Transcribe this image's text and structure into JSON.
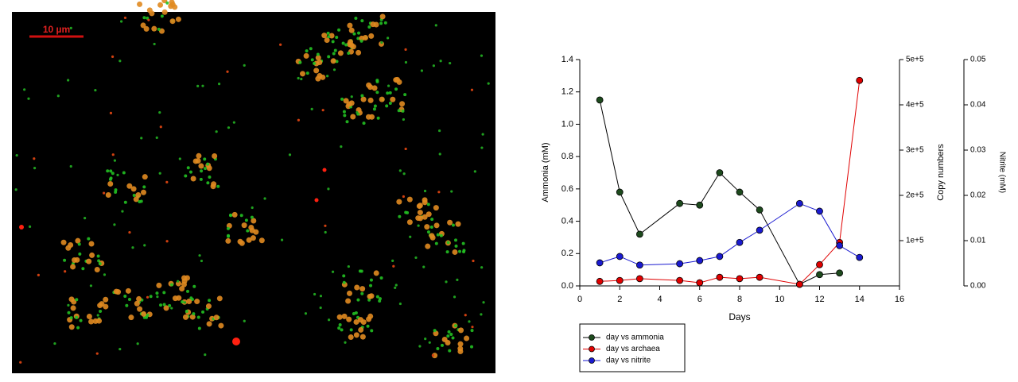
{
  "image": {
    "scale_bar_label": "10 µm"
  },
  "chart_data": {
    "type": "line",
    "xlabel": "Days",
    "ylabel": "Ammonia (mM)",
    "y2label": "Copy numbers",
    "y3label": "Nitrite (mM)",
    "x": [
      1,
      2,
      3,
      5,
      6,
      7,
      8,
      9,
      11,
      12,
      13,
      14
    ],
    "series": [
      {
        "name": "day vs ammonia",
        "color": "#1d4a1d",
        "line_color": "#000000",
        "axis": "y",
        "values": [
          1.15,
          0.58,
          0.32,
          0.51,
          0.5,
          0.7,
          0.58,
          0.47,
          0.01,
          0.07,
          0.08,
          null
        ]
      },
      {
        "name": "day vs archaea",
        "color": "#e00000",
        "line_color": "#e00000",
        "axis": "y2",
        "values": [
          10000,
          12000,
          16000,
          12000,
          7000,
          19000,
          16000,
          19000,
          3500,
          47000,
          96000,
          454000
        ]
      },
      {
        "name": "day vs nitrite",
        "color": "#1a1ad0",
        "line_color": "#1a1ad0",
        "axis": "y3",
        "values": [
          0.0051,
          0.0065,
          0.0046,
          0.0049,
          0.0056,
          0.0065,
          0.0096,
          0.0123,
          0.0182,
          0.0165,
          0.0089,
          0.0063
        ]
      }
    ],
    "xlim": [
      0,
      16
    ],
    "xticks": [
      0,
      2,
      4,
      6,
      8,
      10,
      12,
      14,
      16
    ],
    "ylim": [
      0,
      1.4
    ],
    "yticks": [
      {
        "value": 0,
        "label": "0.0"
      },
      {
        "value": 0.2,
        "label": "0.2"
      },
      {
        "value": 0.4,
        "label": "0.4"
      },
      {
        "value": 0.6,
        "label": "0.6"
      },
      {
        "value": 0.8,
        "label": "0.8"
      },
      {
        "value": 1,
        "label": "1.0"
      },
      {
        "value": 1.2,
        "label": "1.2"
      },
      {
        "value": 1.4,
        "label": "1.4"
      }
    ],
    "y2lim": [
      0,
      500000
    ],
    "y2ticks": [
      {
        "value": 100000,
        "label": "1e+5"
      },
      {
        "value": 200000,
        "label": "2e+5"
      },
      {
        "value": 300000,
        "label": "3e+5"
      },
      {
        "value": 400000,
        "label": "4e+5"
      },
      {
        "value": 500000,
        "label": "5e+5"
      }
    ],
    "y3lim": [
      0,
      0.05
    ],
    "y3ticks": [
      {
        "value": 0,
        "label": "0.00"
      },
      {
        "value": 0.01,
        "label": "0.01"
      },
      {
        "value": 0.02,
        "label": "0.02"
      },
      {
        "value": 0.03,
        "label": "0.03"
      },
      {
        "value": 0.04,
        "label": "0.04"
      },
      {
        "value": 0.05,
        "label": "0.05"
      }
    ],
    "grid": false
  }
}
